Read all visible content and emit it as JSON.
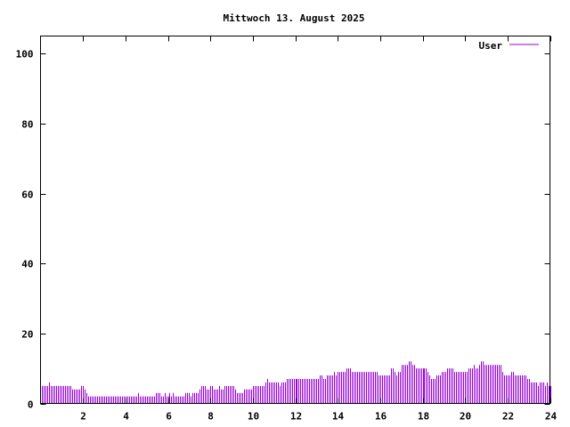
{
  "chart_data": {
    "type": "bar",
    "style": "impulses",
    "title": "Mittwoch 13. August 2025",
    "xlabel": "",
    "ylabel": "",
    "xlim": [
      0,
      24
    ],
    "ylim": [
      0,
      105
    ],
    "x_ticks": [
      "2",
      "4",
      "6",
      "8",
      "10",
      "12",
      "14",
      "16",
      "18",
      "20",
      "22",
      "24"
    ],
    "y_ticks": [
      "0",
      "20",
      "40",
      "60",
      "80",
      "100"
    ],
    "grid": false,
    "legend_position": "top-right",
    "series": [
      {
        "name": "User",
        "color": "#9400d3",
        "values": [
          5,
          5,
          5,
          5,
          6,
          5,
          5,
          5,
          5,
          5,
          5,
          5,
          5,
          5,
          5,
          5,
          5,
          4,
          4,
          4,
          4,
          4,
          5,
          5,
          4,
          3,
          2,
          2,
          2,
          2,
          2,
          2,
          2,
          2,
          2,
          2,
          2,
          2,
          2,
          2,
          2,
          2,
          2,
          2,
          2,
          2,
          2,
          2,
          2,
          2,
          2,
          2,
          2,
          2,
          3,
          2,
          2,
          2,
          2,
          2,
          2,
          2,
          2,
          2,
          3,
          3,
          3,
          2,
          2,
          3,
          2,
          2,
          3,
          2,
          3,
          2,
          2,
          2,
          2,
          2,
          2,
          3,
          3,
          3,
          2,
          3,
          3,
          3,
          3,
          4,
          5,
          5,
          5,
          4,
          4,
          5,
          5,
          4,
          4,
          4,
          5,
          4,
          4,
          5,
          5,
          5,
          5,
          5,
          5,
          4,
          3,
          3,
          3,
          3,
          4,
          4,
          4,
          4,
          4,
          5,
          5,
          5,
          5,
          5,
          5,
          5,
          6,
          7,
          6,
          6,
          6,
          6,
          6,
          6,
          5,
          6,
          6,
          6,
          7,
          7,
          7,
          7,
          7,
          7,
          7,
          7,
          7,
          7,
          7,
          7,
          7,
          7,
          7,
          7,
          7,
          7,
          7,
          8,
          8,
          7,
          7,
          8,
          8,
          8,
          8,
          9,
          8,
          9,
          9,
          9,
          9,
          9,
          10,
          10,
          10,
          9,
          9,
          9,
          9,
          9,
          9,
          9,
          9,
          9,
          9,
          9,
          9,
          9,
          9,
          9,
          8,
          8,
          8,
          8,
          8,
          8,
          8,
          10,
          10,
          9,
          8,
          9,
          9,
          11,
          11,
          11,
          11,
          12,
          12,
          11,
          11,
          10,
          10,
          10,
          10,
          10,
          10,
          10,
          9,
          8,
          7,
          7,
          7,
          8,
          8,
          8,
          9,
          9,
          9,
          10,
          10,
          10,
          10,
          9,
          9,
          9,
          9,
          9,
          9,
          9,
          9,
          10,
          10,
          10,
          11,
          10,
          10,
          11,
          12,
          12,
          11,
          11,
          11,
          11,
          11,
          11,
          11,
          11,
          11,
          11,
          9,
          8,
          8,
          8,
          8,
          9,
          9,
          8,
          8,
          8,
          8,
          8,
          8,
          8,
          7,
          7,
          6,
          6,
          6,
          6,
          5,
          6,
          6,
          6,
          5,
          6,
          5,
          5
        ]
      }
    ]
  }
}
